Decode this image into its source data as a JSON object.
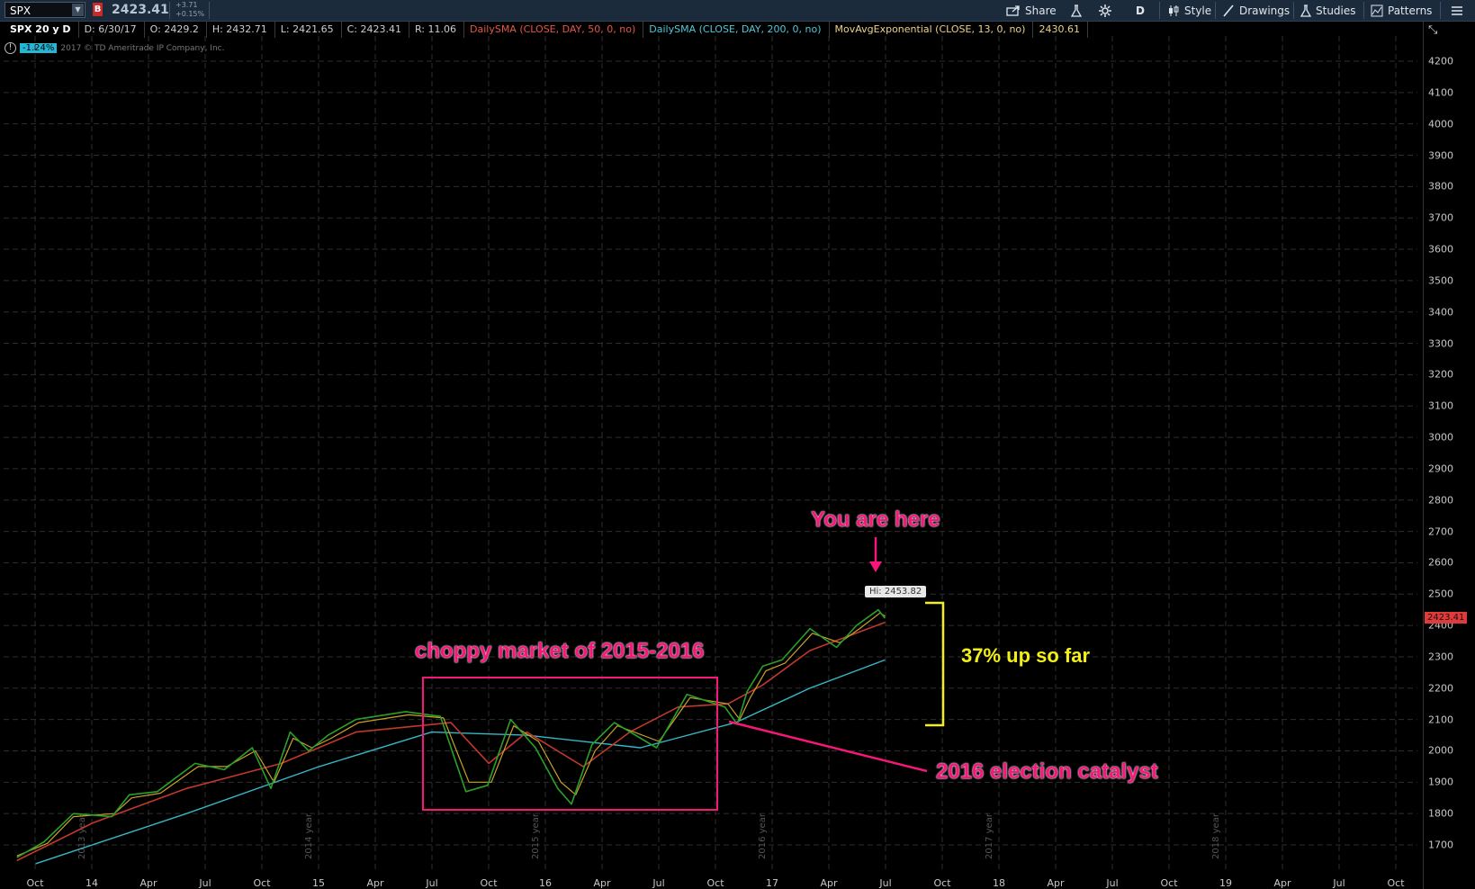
{
  "toolbar": {
    "symbol": "SPX",
    "badge": "B",
    "last": "2423.41",
    "change": "+3.71",
    "change_pct": "+0.15%",
    "share": "Share",
    "period": "D",
    "style": "Style",
    "drawings": "Drawings",
    "studies": "Studies",
    "patterns": "Patterns"
  },
  "infobar": {
    "chart_name": "SPX 20 y D",
    "date": "D: 6/30/17",
    "open": "O: 2429.2",
    "high": "H: 2432.71",
    "low": "L: 2421.65",
    "close": "C: 2423.41",
    "range": "R: 11.06",
    "sma50": "DailySMA (CLOSE, DAY, 50, 0, no)",
    "sma200": "DailySMA (CLOSE, DAY, 200, 0, no)",
    "ema": "MovAvgExponential (CLOSE, 13, 0, no)",
    "ema_value": "2430.61"
  },
  "sub": {
    "pct": "-1.24%",
    "copyright": "2017 © TD Ameritrade IP Company, Inc."
  },
  "colors": {
    "price": "#2aa02a",
    "price_light": "#b8e060",
    "sma50": "#c0392b",
    "sma200": "#35b7c8",
    "ema": "#c9a227",
    "pink": "#f7177a",
    "yellow": "#f3f017",
    "last_tag": "#e03a3a"
  },
  "chart_data": {
    "type": "line",
    "title": "SPX 20 y D",
    "ylim": [
      1630,
      4250
    ],
    "y_ticks": [
      "4200",
      "4100",
      "4000",
      "3900",
      "3800",
      "3700",
      "3600",
      "3500",
      "3400",
      "3300",
      "3200",
      "3100",
      "3000",
      "2900",
      "2800",
      "2700",
      "2600",
      "2500",
      "2400",
      "2300",
      "2200",
      "2100",
      "2000",
      "1900",
      "1800",
      "1700"
    ],
    "x_ticks": [
      "Oct",
      "14",
      "Apr",
      "Jul",
      "Oct",
      "15",
      "Apr",
      "Jul",
      "Oct",
      "16",
      "Apr",
      "Jul",
      "Oct",
      "17",
      "Apr",
      "Jul",
      "Oct",
      "18",
      "Apr",
      "Jul",
      "Oct",
      "19",
      "Apr",
      "Jul",
      "Oct"
    ],
    "year_labels": [
      "2013 year",
      "2014 year",
      "2015 year",
      "2016 year",
      "2017 year",
      "2018 year"
    ],
    "last_price": "2423.41",
    "high_label": "Hi: 2453.82",
    "series": [
      {
        "name": "SPX",
        "x": [
          "2013-09-01",
          "2013-10-15",
          "2013-12-01",
          "2014-02-01",
          "2014-03-01",
          "2014-04-15",
          "2014-06-15",
          "2014-08-01",
          "2014-09-15",
          "2014-10-15",
          "2014-11-15",
          "2014-12-15",
          "2015-01-15",
          "2015-03-01",
          "2015-05-20",
          "2015-07-15",
          "2015-08-25",
          "2015-09-29",
          "2015-11-05",
          "2015-12-15",
          "2016-01-20",
          "2016-02-11",
          "2016-03-15",
          "2016-04-20",
          "2016-06-27",
          "2016-08-15",
          "2016-10-15",
          "2016-11-04",
          "2016-11-20",
          "2016-12-15",
          "2017-01-15",
          "2017-03-01",
          "2017-04-13",
          "2017-05-15",
          "2017-06-19",
          "2017-06-30"
        ],
        "values": [
          1660,
          1710,
          1800,
          1790,
          1860,
          1870,
          1960,
          1940,
          2010,
          1880,
          2060,
          2000,
          2050,
          2100,
          2125,
          2110,
          1870,
          1890,
          2100,
          2010,
          1880,
          1830,
          2020,
          2090,
          2010,
          2180,
          2140,
          2085,
          2190,
          2270,
          2290,
          2390,
          2330,
          2400,
          2450,
          2423
        ]
      },
      {
        "name": "DailySMA (CLOSE, DAY, 50, 0, no)",
        "x": [
          "2013-09-01",
          "2014-01-01",
          "2014-06-01",
          "2014-11-01",
          "2015-03-01",
          "2015-08-01",
          "2015-10-01",
          "2015-12-01",
          "2016-03-01",
          "2016-05-15",
          "2016-08-01",
          "2016-10-20",
          "2016-12-15",
          "2017-03-01",
          "2017-06-30"
        ],
        "values": [
          1650,
          1770,
          1880,
          1960,
          2060,
          2090,
          1960,
          2060,
          1950,
          2060,
          2140,
          2150,
          2210,
          2320,
          2410
        ]
      },
      {
        "name": "DailySMA (CLOSE, DAY, 200, 0, no)",
        "x": [
          "2013-10-01",
          "2014-06-01",
          "2015-01-01",
          "2015-07-01",
          "2015-12-01",
          "2016-06-01",
          "2016-11-01",
          "2017-03-01",
          "2017-06-30"
        ],
        "values": [
          1640,
          1800,
          1950,
          2060,
          2050,
          2010,
          2090,
          2200,
          2290
        ]
      },
      {
        "name": "MovAvgExponential (CLOSE, 13, 0, no)",
        "x": [
          "2013-09-01",
          "2013-10-20",
          "2013-12-01",
          "2014-02-05",
          "2014-03-05",
          "2014-04-20",
          "2014-06-20",
          "2014-08-05",
          "2014-09-20",
          "2014-10-20",
          "2014-11-20",
          "2014-12-20",
          "2015-01-20",
          "2015-03-05",
          "2015-05-25",
          "2015-07-20",
          "2015-08-30",
          "2015-10-05",
          "2015-11-10",
          "2015-12-20",
          "2016-01-25",
          "2016-02-18",
          "2016-03-20",
          "2016-04-25",
          "2016-07-01",
          "2016-08-20",
          "2016-10-20",
          "2016-11-08",
          "2016-11-25",
          "2016-12-20",
          "2017-01-20",
          "2017-03-05",
          "2017-04-18",
          "2017-05-20",
          "2017-06-22",
          "2017-06-30"
        ],
        "values": [
          1665,
          1705,
          1790,
          1800,
          1850,
          1865,
          1950,
          1950,
          2000,
          1900,
          2040,
          2010,
          2040,
          2090,
          2115,
          2105,
          1900,
          1900,
          2080,
          2030,
          1900,
          1860,
          2000,
          2080,
          2030,
          2170,
          2150,
          2100,
          2170,
          2255,
          2280,
          2375,
          2345,
          2390,
          2440,
          2430
        ]
      }
    ]
  },
  "annotations": {
    "you_are_here": "You are here",
    "choppy": "choppy market of 2015-2016",
    "up": "37% up so far",
    "election": "2016 election catalyst"
  }
}
